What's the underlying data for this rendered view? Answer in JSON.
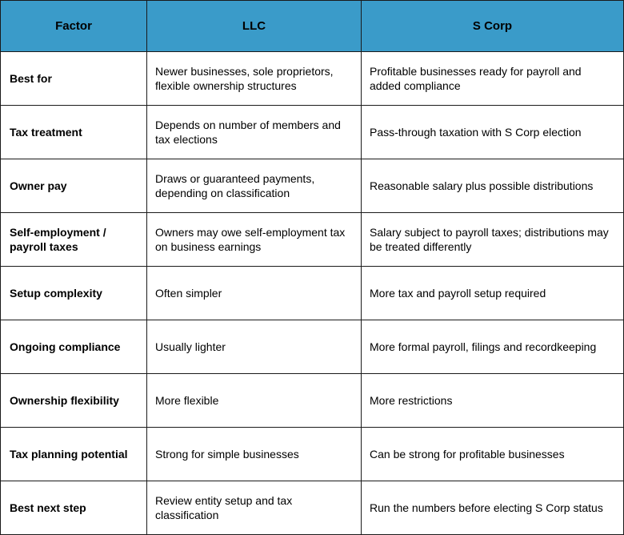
{
  "table": {
    "headers": [
      "Factor",
      "LLC",
      "S Corp"
    ],
    "header_bg": "#3a9bc9",
    "rows": [
      {
        "factor": "Best for",
        "llc": "Newer businesses, sole proprietors, flexible ownership structures",
        "scorp": "Profitable businesses ready for payroll and added compliance"
      },
      {
        "factor": "Tax treatment",
        "llc": "Depends on number of members and tax elections",
        "scorp": "Pass-through taxation with S Corp election"
      },
      {
        "factor": "Owner pay",
        "llc": "Draws or guaranteed payments, depending on classification",
        "scorp": "Reasonable salary plus possible distributions"
      },
      {
        "factor": "Self-employment / payroll taxes",
        "llc": "Owners may owe self-employment tax on business earnings",
        "scorp": "Salary subject to payroll taxes; distributions may be treated differently"
      },
      {
        "factor": "Setup complexity",
        "llc": "Often simpler",
        "scorp": "More tax and payroll setup required"
      },
      {
        "factor": "Ongoing compliance",
        "llc": "Usually lighter",
        "scorp": "More formal payroll, filings and recordkeeping"
      },
      {
        "factor": "Ownership flexibility",
        "llc": "More flexible",
        "scorp": "More restrictions"
      },
      {
        "factor": "Tax planning potential",
        "llc": "Strong for simple businesses",
        "scorp": "Can be strong for profitable businesses"
      },
      {
        "factor": "Best next step",
        "llc": "Review entity setup and tax classification",
        "scorp": "Run the numbers before electing S Corp status"
      }
    ]
  }
}
